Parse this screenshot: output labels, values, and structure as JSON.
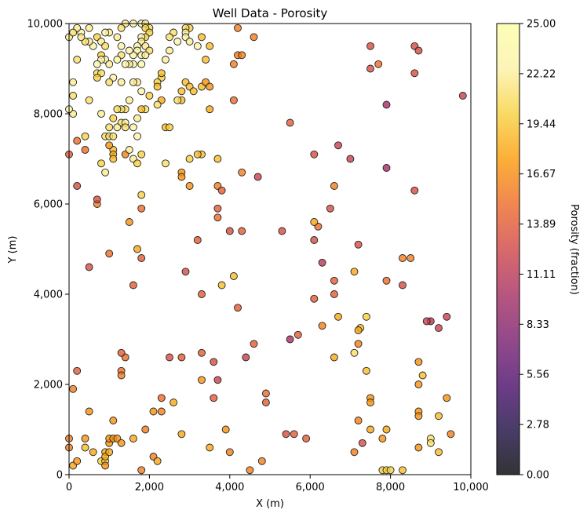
{
  "chart_data": {
    "type": "scatter",
    "title": "Well Data - Porosity",
    "xlabel": "X (m)",
    "ylabel": "Y (m)",
    "xlim": [
      0,
      10000
    ],
    "ylim": [
      0,
      10000
    ],
    "x_ticks": [
      "0",
      "2,000",
      "4,000",
      "6,000",
      "8,000",
      "10,000"
    ],
    "y_ticks": [
      "0",
      "2,000",
      "4,000",
      "6,000",
      "8,000",
      "10,000"
    ],
    "grid": false,
    "colormap": "inferno",
    "colorbar": {
      "label": "Porosity (fraction)",
      "range": [
        0,
        25
      ],
      "ticks": [
        "0.00",
        "2.78",
        "5.56",
        "8.33",
        "11.11",
        "13.89",
        "16.67",
        "19.44",
        "22.22",
        "25.00"
      ],
      "placement": "right"
    },
    "points": [
      [
        9000,
        3400,
        11
      ],
      [
        9200,
        3250,
        12
      ],
      [
        9400,
        3500,
        12
      ],
      [
        9500,
        900,
        16
      ],
      [
        9200,
        500,
        19
      ],
      [
        9400,
        1700,
        17
      ],
      [
        9200,
        1300,
        19
      ],
      [
        9000,
        800,
        21
      ],
      [
        9000,
        700,
        21
      ],
      [
        8800,
        2200,
        19
      ],
      [
        8700,
        2000,
        17
      ],
      [
        8700,
        2500,
        17
      ],
      [
        8700,
        1400,
        17
      ],
      [
        8700,
        1300,
        17
      ],
      [
        8700,
        600,
        17
      ],
      [
        8500,
        4800,
        16
      ],
      [
        8300,
        4800,
        16
      ],
      [
        8300,
        4200,
        13
      ],
      [
        7900,
        4300,
        15
      ],
      [
        7900,
        6800,
        10
      ],
      [
        7900,
        8200,
        10
      ],
      [
        8600,
        9500,
        13
      ],
      [
        8700,
        9400,
        13
      ],
      [
        8600,
        8900,
        13
      ],
      [
        8600,
        6300,
        13
      ],
      [
        7700,
        9100,
        15
      ],
      [
        7500,
        9500,
        13
      ],
      [
        7500,
        9000,
        13
      ],
      [
        7500,
        1700,
        17
      ],
      [
        7500,
        1600,
        17
      ],
      [
        7500,
        1000,
        18
      ],
      [
        7900,
        1000,
        18
      ],
      [
        7800,
        800,
        17
      ],
      [
        7400,
        2300,
        19
      ],
      [
        7400,
        3500,
        20
      ],
      [
        7250,
        3250,
        19
      ],
      [
        7200,
        3200,
        18
      ],
      [
        7200,
        2900,
        16
      ],
      [
        7100,
        2700,
        21
      ],
      [
        7100,
        4500,
        18
      ],
      [
        7200,
        1200,
        16
      ],
      [
        7300,
        700,
        13
      ],
      [
        7100,
        500,
        16
      ],
      [
        7800,
        100,
        20
      ],
      [
        7900,
        100,
        20
      ],
      [
        8000,
        100,
        20
      ],
      [
        8300,
        100,
        19
      ],
      [
        9800,
        8400,
        12
      ],
      [
        8900,
        3400,
        12
      ],
      [
        6600,
        6400,
        16
      ],
      [
        6500,
        5900,
        13
      ],
      [
        6200,
        5500,
        15
      ],
      [
        6100,
        5600,
        18
      ],
      [
        6100,
        5200,
        13
      ],
      [
        6100,
        3900,
        14
      ],
      [
        6600,
        4300,
        14
      ],
      [
        6600,
        4000,
        14
      ],
      [
        6700,
        3500,
        18
      ],
      [
        6600,
        2600,
        18
      ],
      [
        6300,
        3300,
        16
      ],
      [
        6300,
        4700,
        11
      ],
      [
        6100,
        7100,
        13
      ],
      [
        6700,
        7300,
        12
      ],
      [
        7000,
        7000,
        12
      ],
      [
        7200,
        5100,
        13
      ],
      [
        5500,
        7800,
        14
      ],
      [
        5700,
        3100,
        14
      ],
      [
        5500,
        3000,
        10
      ],
      [
        5300,
        5400,
        13
      ],
      [
        5600,
        900,
        14
      ],
      [
        5400,
        900,
        13
      ],
      [
        5900,
        800,
        14
      ],
      [
        4700,
        6600,
        12
      ],
      [
        4300,
        6700,
        16
      ],
      [
        4100,
        9100,
        16
      ],
      [
        4200,
        9300,
        16
      ],
      [
        4300,
        9300,
        16
      ],
      [
        4200,
        9900,
        16
      ],
      [
        4600,
        9700,
        16
      ],
      [
        4100,
        8300,
        15
      ],
      [
        4300,
        5400,
        14
      ],
      [
        4000,
        5400,
        13
      ],
      [
        4100,
        4400,
        19
      ],
      [
        3800,
        4200,
        19
      ],
      [
        4200,
        3700,
        14
      ],
      [
        4600,
        2900,
        14
      ],
      [
        4400,
        2600,
        12
      ],
      [
        4900,
        1800,
        15
      ],
      [
        4900,
        1600,
        14
      ],
      [
        4800,
        300,
        16
      ],
      [
        4500,
        100,
        16
      ],
      [
        4000,
        500,
        16
      ],
      [
        3900,
        1000,
        17
      ],
      [
        3500,
        600,
        18
      ],
      [
        3700,
        2100,
        12
      ],
      [
        3600,
        2500,
        13
      ],
      [
        3600,
        1700,
        14
      ],
      [
        3300,
        2100,
        17
      ],
      [
        3300,
        2700,
        14
      ],
      [
        3300,
        4000,
        14
      ],
      [
        3200,
        5200,
        14
      ],
      [
        2900,
        4500,
        13
      ],
      [
        3000,
        6400,
        17
      ],
      [
        3300,
        7100,
        19
      ],
      [
        3200,
        7100,
        19
      ],
      [
        2800,
        6700,
        17
      ],
      [
        2800,
        6600,
        17
      ],
      [
        3000,
        7000,
        20
      ],
      [
        2900,
        8700,
        19
      ],
      [
        2800,
        8300,
        19
      ],
      [
        2700,
        8300,
        21
      ],
      [
        2800,
        8500,
        19
      ],
      [
        3000,
        8600,
        19
      ],
      [
        3100,
        8500,
        19
      ],
      [
        3300,
        8600,
        19
      ],
      [
        3400,
        8700,
        17
      ],
      [
        3500,
        8600,
        17
      ],
      [
        3500,
        8100,
        18
      ],
      [
        3400,
        9200,
        19
      ],
      [
        3500,
        9500,
        19
      ],
      [
        3300,
        9700,
        19
      ],
      [
        3000,
        9900,
        20
      ],
      [
        2900,
        9900,
        21
      ],
      [
        2900,
        9800,
        22
      ],
      [
        2900,
        9700,
        23
      ],
      [
        3000,
        9600,
        22
      ],
      [
        3200,
        9500,
        23
      ],
      [
        2600,
        9800,
        21
      ],
      [
        2500,
        9700,
        21
      ],
      [
        2700,
        9600,
        23
      ],
      [
        2500,
        9400,
        22
      ],
      [
        2400,
        9200,
        22
      ],
      [
        2300,
        8800,
        20
      ],
      [
        2200,
        8700,
        20
      ],
      [
        2300,
        8900,
        19
      ],
      [
        2200,
        8600,
        19
      ],
      [
        2300,
        8300,
        18
      ],
      [
        2200,
        8200,
        21
      ],
      [
        2000,
        8400,
        20
      ],
      [
        2400,
        7700,
        19
      ],
      [
        2500,
        7700,
        20
      ],
      [
        2400,
        6900,
        21
      ],
      [
        3700,
        7000,
        19
      ],
      [
        3700,
        6400,
        16
      ],
      [
        3800,
        6300,
        14
      ],
      [
        3700,
        5900,
        14
      ],
      [
        3700,
        5700,
        15
      ],
      [
        1800,
        10000,
        23
      ],
      [
        1900,
        10000,
        23
      ],
      [
        2000,
        9900,
        21
      ],
      [
        1900,
        9900,
        20
      ],
      [
        2000,
        9800,
        20
      ],
      [
        1900,
        9700,
        20
      ],
      [
        1800,
        9700,
        23
      ],
      [
        1800,
        9600,
        22
      ],
      [
        1700,
        9500,
        23
      ],
      [
        1900,
        9500,
        22
      ],
      [
        1700,
        9400,
        24
      ],
      [
        2000,
        9400,
        21
      ],
      [
        1600,
        9300,
        23
      ],
      [
        1800,
        9300,
        24
      ],
      [
        1900,
        9300,
        22
      ],
      [
        1600,
        9100,
        23
      ],
      [
        1800,
        9100,
        24
      ],
      [
        1500,
        9100,
        22
      ],
      [
        1500,
        9400,
        23
      ],
      [
        1600,
        10000,
        23
      ],
      [
        1400,
        10000,
        22
      ],
      [
        1300,
        9900,
        21
      ],
      [
        1200,
        9700,
        22
      ],
      [
        1300,
        9500,
        23
      ],
      [
        1300,
        9300,
        21
      ],
      [
        1200,
        9200,
        24
      ],
      [
        1400,
        9100,
        23
      ],
      [
        1000,
        9800,
        22
      ],
      [
        900,
        9800,
        23
      ],
      [
        700,
        9700,
        20
      ],
      [
        800,
        9600,
        22
      ],
      [
        900,
        9500,
        21
      ],
      [
        800,
        9300,
        20
      ],
      [
        900,
        9200,
        23
      ],
      [
        800,
        9200,
        23
      ],
      [
        700,
        9100,
        23
      ],
      [
        1000,
        9100,
        22
      ],
      [
        1100,
        8800,
        23
      ],
      [
        1000,
        8700,
        21
      ],
      [
        700,
        8900,
        21
      ],
      [
        800,
        8900,
        21
      ],
      [
        700,
        8800,
        20
      ],
      [
        1300,
        8700,
        22
      ],
      [
        1700,
        8700,
        22
      ],
      [
        1600,
        8700,
        22
      ],
      [
        1800,
        8500,
        23
      ],
      [
        1500,
        8300,
        22
      ],
      [
        1400,
        8100,
        21
      ],
      [
        1300,
        8100,
        21
      ],
      [
        1200,
        8100,
        21
      ],
      [
        1100,
        7900,
        20
      ],
      [
        1000,
        7700,
        21
      ],
      [
        1300,
        7800,
        21
      ],
      [
        1400,
        7800,
        22
      ],
      [
        1400,
        7700,
        21
      ],
      [
        1200,
        7700,
        22
      ],
      [
        1700,
        7900,
        22
      ],
      [
        1600,
        7700,
        23
      ],
      [
        1700,
        7500,
        23
      ],
      [
        1900,
        8100,
        21
      ],
      [
        1800,
        8100,
        19
      ],
      [
        800,
        8000,
        22
      ],
      [
        900,
        7500,
        21
      ],
      [
        1000,
        7500,
        21
      ],
      [
        1100,
        7500,
        21
      ],
      [
        1100,
        7200,
        19
      ],
      [
        1100,
        7100,
        18
      ],
      [
        1100,
        7000,
        19
      ],
      [
        1400,
        7100,
        16
      ],
      [
        1500,
        7200,
        22
      ],
      [
        1600,
        7000,
        22
      ],
      [
        1700,
        6900,
        20
      ],
      [
        1800,
        7100,
        20
      ],
      [
        1000,
        7300,
        17
      ],
      [
        800,
        6900,
        20
      ],
      [
        900,
        6700,
        22
      ],
      [
        1800,
        6200,
        20
      ],
      [
        700,
        6000,
        16
      ],
      [
        700,
        6100,
        13
      ],
      [
        1800,
        5900,
        15
      ],
      [
        1800,
        4800,
        14
      ],
      [
        1700,
        5000,
        18
      ],
      [
        1500,
        5600,
        17
      ],
      [
        1600,
        4200,
        14
      ],
      [
        1000,
        4900,
        15
      ],
      [
        1400,
        2600,
        15
      ],
      [
        1300,
        2700,
        14
      ],
      [
        1300,
        2300,
        15
      ],
      [
        1300,
        2200,
        16
      ],
      [
        500,
        4600,
        13
      ],
      [
        0,
        7100,
        14
      ],
      [
        200,
        7400,
        15
      ],
      [
        400,
        7200,
        15
      ],
      [
        200,
        6400,
        13
      ],
      [
        400,
        7500,
        20
      ],
      [
        100,
        8000,
        22
      ],
      [
        0,
        8100,
        23
      ],
      [
        500,
        8300,
        21
      ],
      [
        100,
        8400,
        21
      ],
      [
        100,
        8700,
        22
      ],
      [
        200,
        9200,
        21
      ],
      [
        0,
        9700,
        22
      ],
      [
        300,
        9800,
        23
      ],
      [
        200,
        9900,
        22
      ],
      [
        500,
        9900,
        22
      ],
      [
        600,
        9500,
        23
      ],
      [
        500,
        9600,
        22
      ],
      [
        400,
        9600,
        21
      ],
      [
        100,
        9800,
        21
      ],
      [
        300,
        9700,
        22
      ],
      [
        200,
        2300,
        14
      ],
      [
        100,
        1900,
        16
      ],
      [
        500,
        1400,
        17
      ],
      [
        600,
        500,
        18
      ],
      [
        800,
        300,
        20
      ],
      [
        900,
        300,
        20
      ],
      [
        900,
        500,
        18
      ],
      [
        900,
        400,
        18
      ],
      [
        900,
        200,
        17
      ],
      [
        1000,
        500,
        18
      ],
      [
        1000,
        700,
        17
      ],
      [
        1000,
        800,
        17
      ],
      [
        1100,
        800,
        17
      ],
      [
        1100,
        1200,
        17
      ],
      [
        1200,
        800,
        17
      ],
      [
        1300,
        700,
        17
      ],
      [
        1600,
        800,
        18
      ],
      [
        1800,
        100,
        16
      ],
      [
        1900,
        1000,
        16
      ],
      [
        2100,
        1400,
        17
      ],
      [
        2100,
        400,
        16
      ],
      [
        2200,
        300,
        18
      ],
      [
        2300,
        1700,
        15
      ],
      [
        2300,
        1400,
        16
      ],
      [
        2500,
        2600,
        13
      ],
      [
        2600,
        1600,
        18
      ],
      [
        2800,
        2600,
        14
      ],
      [
        2800,
        900,
        18
      ],
      [
        400,
        800,
        17
      ],
      [
        400,
        600,
        19
      ],
      [
        0,
        800,
        16
      ],
      [
        0,
        600,
        16
      ],
      [
        100,
        200,
        18
      ],
      [
        200,
        300,
        17
      ]
    ]
  }
}
